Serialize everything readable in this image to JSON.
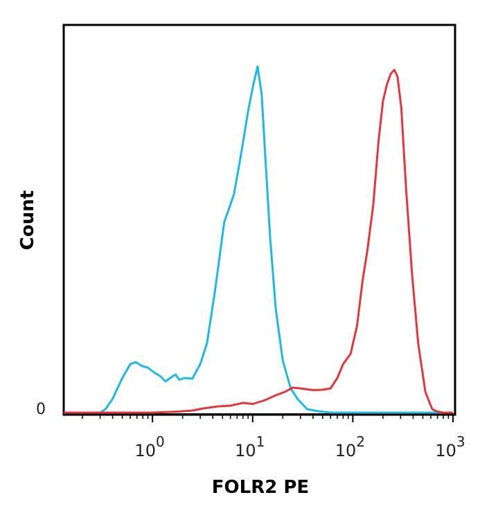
{
  "chart_data": {
    "type": "line",
    "title": "",
    "xlabel": "FOLR2 PE",
    "ylabel": "Count",
    "x_scale": "log",
    "xlim": [
      0.13,
      1000
    ],
    "ylim": [
      0,
      1.08
    ],
    "grid": false,
    "legend": "none",
    "x_ticks": [
      {
        "base": "10",
        "exp": "0",
        "value": 1
      },
      {
        "base": "10",
        "exp": "1",
        "value": 10
      },
      {
        "base": "10",
        "exp": "2",
        "value": 100
      },
      {
        "base": "10",
        "exp": "3",
        "value": 1000
      }
    ],
    "y_ticks": [
      {
        "label": "0",
        "value": 0
      }
    ],
    "series": [
      {
        "color": "#1cb8e6",
        "points": [
          [
            0.13,
            0
          ],
          [
            0.3,
            0
          ],
          [
            0.34,
            0.01
          ],
          [
            0.4,
            0.04
          ],
          [
            0.5,
            0.1
          ],
          [
            0.6,
            0.14
          ],
          [
            0.68,
            0.146
          ],
          [
            0.78,
            0.135
          ],
          [
            0.9,
            0.13
          ],
          [
            1.05,
            0.115
          ],
          [
            1.2,
            0.105
          ],
          [
            1.35,
            0.09
          ],
          [
            1.5,
            0.1
          ],
          [
            1.7,
            0.11
          ],
          [
            1.85,
            0.095
          ],
          [
            2.1,
            0.1
          ],
          [
            2.5,
            0.098
          ],
          [
            3.0,
            0.14
          ],
          [
            3.5,
            0.2
          ],
          [
            4.2,
            0.35
          ],
          [
            5.2,
            0.55
          ],
          [
            6.5,
            0.63
          ],
          [
            7.8,
            0.76
          ],
          [
            9.0,
            0.87
          ],
          [
            10.2,
            0.95
          ],
          [
            11.2,
            1.0
          ],
          [
            12.3,
            0.92
          ],
          [
            13.5,
            0.72
          ],
          [
            15,
            0.5
          ],
          [
            17,
            0.3
          ],
          [
            20,
            0.15
          ],
          [
            24,
            0.07
          ],
          [
            28,
            0.04
          ],
          [
            35,
            0.01
          ],
          [
            45,
            0.004
          ],
          [
            60,
            0
          ],
          [
            1000,
            0
          ]
        ]
      },
      {
        "color": "#e6343b",
        "points": [
          [
            0.13,
            0
          ],
          [
            1.0,
            0
          ],
          [
            1.8,
            0.003
          ],
          [
            2.5,
            0.006
          ],
          [
            3.2,
            0.012
          ],
          [
            4.5,
            0.018
          ],
          [
            6.0,
            0.02
          ],
          [
            8.0,
            0.028
          ],
          [
            10,
            0.025
          ],
          [
            13,
            0.035
          ],
          [
            17,
            0.05
          ],
          [
            21,
            0.06
          ],
          [
            25,
            0.072
          ],
          [
            30,
            0.07
          ],
          [
            40,
            0.065
          ],
          [
            50,
            0.066
          ],
          [
            60,
            0.07
          ],
          [
            70,
            0.1
          ],
          [
            80,
            0.14
          ],
          [
            95,
            0.17
          ],
          [
            110,
            0.25
          ],
          [
            125,
            0.38
          ],
          [
            140,
            0.47
          ],
          [
            160,
            0.6
          ],
          [
            180,
            0.78
          ],
          [
            200,
            0.9
          ],
          [
            220,
            0.95
          ],
          [
            240,
            0.98
          ],
          [
            260,
            0.99
          ],
          [
            280,
            0.97
          ],
          [
            305,
            0.88
          ],
          [
            340,
            0.65
          ],
          [
            390,
            0.4
          ],
          [
            450,
            0.2
          ],
          [
            530,
            0.06
          ],
          [
            620,
            0.01
          ],
          [
            700,
            0.003
          ],
          [
            800,
            0
          ],
          [
            1000,
            0
          ]
        ]
      }
    ]
  }
}
